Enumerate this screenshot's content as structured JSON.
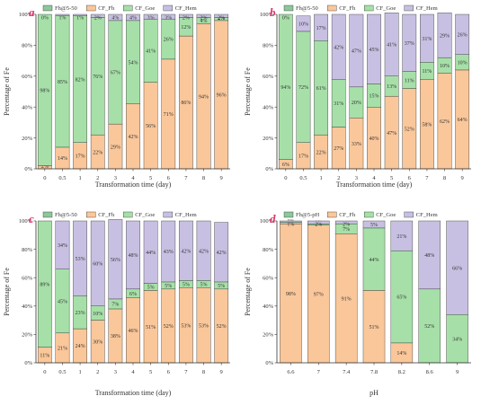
{
  "colors": {
    "s1": "#8cc89a",
    "s2": "#fac79a",
    "s3": "#a6e0a8",
    "s4": "#c8c0e2",
    "edge": "#333333",
    "letter": "#e2336b"
  },
  "chart_data": [
    {
      "panel": "a",
      "type": "bar",
      "stacked": true,
      "ylabel": "Percentage of Fe",
      "xlabel": "Transformation time (day)",
      "yticks": [
        "0%",
        "20%",
        "40%",
        "60%",
        "80%",
        "100%"
      ],
      "categories": [
        "0",
        "0.5",
        "1",
        "2",
        "3",
        "4",
        "5",
        "6",
        "7",
        "8",
        "9"
      ],
      "legend": [
        "Fh@5-50",
        "CF_Fh",
        "CF_Goe",
        "CF_Hem"
      ],
      "series": [
        {
          "key": "s2",
          "values": [
            2,
            14,
            17,
            22,
            29,
            42,
            56,
            71,
            86,
            94,
            96
          ],
          "labels": [
            "2%",
            "14%",
            "17%",
            "22%",
            "29%",
            "42%",
            "56%",
            "71%",
            "86%",
            "94%",
            "96%"
          ]
        },
        {
          "key": "s3",
          "values": [
            98,
            85,
            82,
            76,
            67,
            54,
            41,
            26,
            12,
            4,
            2
          ],
          "labels": [
            "98%",
            "85%",
            "82%",
            "76%",
            "67%",
            "54%",
            "41%",
            "26%",
            "12%",
            "4%",
            "2%"
          ]
        },
        {
          "key": "s4",
          "values": [
            0,
            1,
            1,
            2,
            4,
            4,
            3,
            3,
            2,
            2,
            2
          ],
          "labels": [
            "0%",
            "1%",
            "1%",
            "2%",
            "4%",
            "4%",
            "3%",
            "3%",
            "2%",
            "2%",
            "2%"
          ]
        }
      ],
      "label_keys": [
        "s2",
        "s3",
        "s4"
      ]
    },
    {
      "panel": "b",
      "type": "bar",
      "stacked": true,
      "ylabel": "Percentage of Fe",
      "xlabel": "Transformation time (day)",
      "yticks": [
        "0%",
        "20%",
        "40%",
        "60%",
        "80%",
        "100%"
      ],
      "categories": [
        "0",
        "0.5",
        "1",
        "2",
        "3",
        "4",
        "5",
        "6",
        "7",
        "8",
        "9"
      ],
      "legend": [
        "Fh@5-50",
        "CF_Fh",
        "CF_Goe",
        "CF_Hem"
      ],
      "series": [
        {
          "key": "s2",
          "values": [
            6,
            17,
            22,
            27,
            33,
            40,
            47,
            52,
            58,
            62,
            64
          ],
          "labels": [
            "6%",
            "17%",
            "22%",
            "27%",
            "33%",
            "40%",
            "47%",
            "52%",
            "58%",
            "62%",
            "64%"
          ]
        },
        {
          "key": "s3",
          "values": [
            94,
            72,
            61,
            31,
            20,
            15,
            13,
            11,
            11,
            10,
            10
          ],
          "labels": [
            "94%",
            "72%",
            "61%",
            "31%",
            "20%",
            "15%",
            "13%",
            "11%",
            "11%",
            "10%",
            "10%"
          ]
        },
        {
          "key": "s4",
          "values": [
            0,
            10,
            17,
            42,
            47,
            45,
            41,
            37,
            31,
            29,
            26
          ],
          "labels": [
            "0%",
            "10%",
            "17%",
            "42%",
            "47%",
            "45%",
            "41%",
            "37%",
            "31%",
            "29%",
            "26%"
          ]
        }
      ],
      "label_keys": [
        "s2",
        "s3",
        "s4"
      ]
    },
    {
      "panel": "c",
      "type": "bar",
      "stacked": true,
      "ylabel": "Percentage of Fe",
      "xlabel": "Transformation time (day)",
      "yticks": [
        "0%",
        "20%",
        "40%",
        "60%",
        "80%",
        "100%"
      ],
      "categories": [
        "0",
        "0.5",
        "1",
        "2",
        "3",
        "4",
        "5",
        "6",
        "7",
        "8",
        "9"
      ],
      "legend": [
        "Fh@5-50",
        "CF_Fh",
        "CF_Goe",
        "CF_Hem"
      ],
      "series": [
        {
          "key": "s2",
          "values": [
            11,
            21,
            24,
            30,
            38,
            46,
            51,
            52,
            53,
            53,
            52
          ],
          "labels": [
            "11%",
            "21%",
            "24%",
            "30%",
            "38%",
            "46%",
            "51%",
            "52%",
            "53%",
            "53%",
            "52%"
          ]
        },
        {
          "key": "s3",
          "values": [
            89,
            45,
            23,
            10,
            7,
            6,
            5,
            5,
            5,
            5,
            5
          ],
          "labels": [
            "89%",
            "45%",
            "23%",
            "10%",
            "7%",
            "6%",
            "5%",
            "5%",
            "5%",
            "5%",
            "5%"
          ]
        },
        {
          "key": "s4",
          "values": [
            0,
            34,
            53,
            60,
            56,
            48,
            44,
            43,
            42,
            42,
            42
          ],
          "labels": [
            "",
            "34%",
            "53%",
            "60%",
            "56%",
            "48%",
            "44%",
            "43%",
            "42%",
            "42%",
            "42%"
          ]
        }
      ],
      "label_keys": [
        "s2",
        "s3",
        "s4"
      ]
    },
    {
      "panel": "d",
      "type": "bar",
      "stacked": true,
      "ylabel": "Percentage of Fe",
      "xlabel": "pH",
      "yticks": [
        "0%",
        "20%",
        "40%",
        "60%",
        "80%",
        "100%"
      ],
      "categories": [
        "6.6",
        "7",
        "7.4",
        "7.8",
        "8.2",
        "8.6",
        "9"
      ],
      "legend": [
        "Fh@5-pH",
        "CF_Fh",
        "CF_Goe",
        "CF_Hem"
      ],
      "series": [
        {
          "key": "s2",
          "values": [
            98,
            97,
            91,
            51,
            14,
            0,
            0
          ],
          "labels": [
            "98%",
            "97%",
            "91%",
            "51%",
            "14%",
            "0%",
            "0%"
          ]
        },
        {
          "key": "s3",
          "values": [
            1,
            1,
            7,
            44,
            65,
            52,
            34
          ],
          "labels": [
            "1%",
            "1%",
            "7%",
            "44%",
            "65%",
            "52%",
            "34%"
          ]
        },
        {
          "key": "s4",
          "values": [
            1,
            2,
            2,
            5,
            21,
            48,
            66
          ],
          "labels": [
            "1%",
            "2%",
            "2%",
            "5%",
            "21%",
            "48%",
            "66%"
          ]
        }
      ],
      "label_keys": [
        "s2",
        "s3",
        "s4"
      ]
    }
  ]
}
